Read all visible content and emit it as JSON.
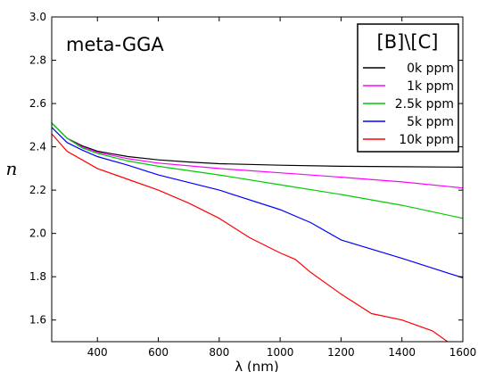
{
  "chart_data": {
    "type": "line",
    "annotation": "meta-GGA",
    "xlabel": "λ (nm)",
    "ylabel": "n",
    "xlim": [
      250,
      1600
    ],
    "ylim": [
      1.5,
      3.0
    ],
    "x_ticks": [
      400,
      600,
      800,
      1000,
      1200,
      1400,
      1600
    ],
    "y_ticks": [
      1.6,
      1.8,
      2.0,
      2.2,
      2.4,
      2.6,
      2.8,
      3.0
    ],
    "grid": false,
    "legend": {
      "title": "[B]\\[C]",
      "placement": "top-right"
    },
    "series": [
      {
        "name": "0k ppm",
        "color": "#000000",
        "points": [
          [
            250,
            2.51
          ],
          [
            300,
            2.44
          ],
          [
            350,
            2.405
          ],
          [
            400,
            2.38
          ],
          [
            500,
            2.355
          ],
          [
            600,
            2.34
          ],
          [
            700,
            2.33
          ],
          [
            800,
            2.322
          ],
          [
            1000,
            2.315
          ],
          [
            1200,
            2.31
          ],
          [
            1400,
            2.308
          ],
          [
            1600,
            2.306
          ]
        ]
      },
      {
        "name": "1k ppm",
        "color": "#ff00ff",
        "points": [
          [
            250,
            2.51
          ],
          [
            300,
            2.44
          ],
          [
            350,
            2.4
          ],
          [
            400,
            2.375
          ],
          [
            500,
            2.345
          ],
          [
            600,
            2.325
          ],
          [
            800,
            2.3
          ],
          [
            1000,
            2.28
          ],
          [
            1200,
            2.26
          ],
          [
            1400,
            2.238
          ],
          [
            1600,
            2.21
          ]
        ]
      },
      {
        "name": "2.5k ppm",
        "color": "#00cc00",
        "points": [
          [
            250,
            2.51
          ],
          [
            300,
            2.44
          ],
          [
            350,
            2.395
          ],
          [
            400,
            2.37
          ],
          [
            500,
            2.335
          ],
          [
            600,
            2.31
          ],
          [
            800,
            2.27
          ],
          [
            1000,
            2.225
          ],
          [
            1200,
            2.18
          ],
          [
            1400,
            2.13
          ],
          [
            1600,
            2.07
          ]
        ]
      },
      {
        "name": "5k ppm",
        "color": "#0000ff",
        "points": [
          [
            250,
            2.49
          ],
          [
            300,
            2.42
          ],
          [
            350,
            2.385
          ],
          [
            400,
            2.355
          ],
          [
            500,
            2.315
          ],
          [
            600,
            2.27
          ],
          [
            800,
            2.2
          ],
          [
            1000,
            2.11
          ],
          [
            1100,
            2.05
          ],
          [
            1200,
            1.97
          ],
          [
            1400,
            1.885
          ],
          [
            1600,
            1.795
          ]
        ]
      },
      {
        "name": "10k ppm",
        "color": "#ff0000",
        "points": [
          [
            250,
            2.46
          ],
          [
            300,
            2.38
          ],
          [
            350,
            2.34
          ],
          [
            400,
            2.3
          ],
          [
            500,
            2.25
          ],
          [
            600,
            2.2
          ],
          [
            700,
            2.14
          ],
          [
            800,
            2.07
          ],
          [
            900,
            1.98
          ],
          [
            1000,
            1.91
          ],
          [
            1050,
            1.88
          ],
          [
            1100,
            1.82
          ],
          [
            1200,
            1.72
          ],
          [
            1300,
            1.63
          ],
          [
            1400,
            1.6
          ],
          [
            1500,
            1.55
          ],
          [
            1550,
            1.5
          ]
        ]
      }
    ]
  }
}
